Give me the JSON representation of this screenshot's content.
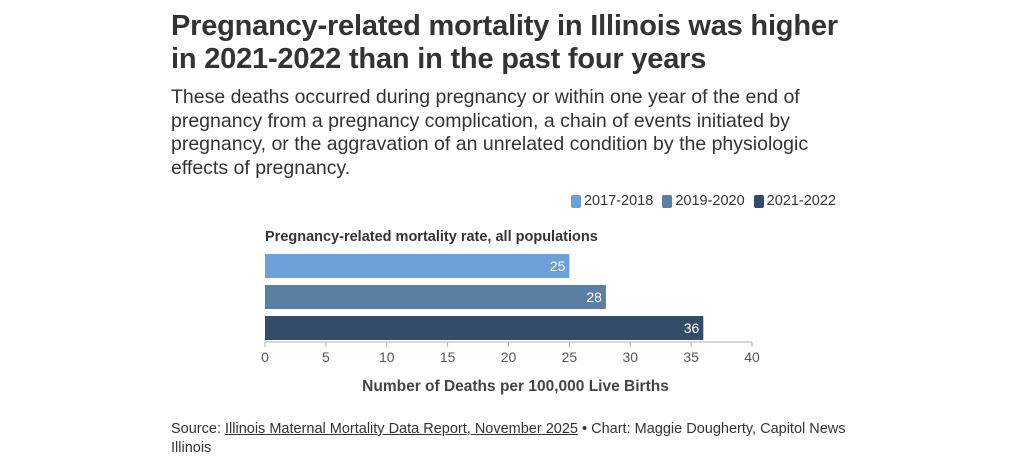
{
  "title": "Pregnancy-related mortality in Illinois was higher in 2021-2022 than in the past four years",
  "subtitle": "These deaths occurred during pregnancy or within one year of the end of pregnancy from a pregnancy complication, a chain of events initiated by pregnancy, or the aggravation of an unrelated condition by the physiologic effects of pregnancy.",
  "legend": [
    {
      "label": "2017-2018",
      "color": "#6d9fd9"
    },
    {
      "label": "2019-2020",
      "color": "#5b7fa3"
    },
    {
      "label": "2021-2022",
      "color": "#344c6a"
    }
  ],
  "footer": {
    "source_prefix": "Source: ",
    "source_link": "Illinois Maternal Mortality Data Report, November 2025",
    "credit": " • Chart: Maggie Dougherty, Capitol News Illinois"
  },
  "chart_data": {
    "type": "bar",
    "orientation": "horizontal",
    "group_label": "Pregnancy-related mortality rate, all populations",
    "series": [
      {
        "name": "2017-2018",
        "values": [
          25
        ],
        "color": "#6d9fd9"
      },
      {
        "name": "2019-2020",
        "values": [
          28
        ],
        "color": "#5b7fa3"
      },
      {
        "name": "2021-2022",
        "values": [
          36
        ],
        "color": "#344c6a"
      }
    ],
    "xlabel": "Number of Deaths per 100,000 Live Births",
    "xlim": [
      0,
      40
    ],
    "xticks": [
      "0",
      "5",
      "10",
      "15",
      "20",
      "25",
      "30",
      "35",
      "40"
    ],
    "legend_position": "top-right",
    "grid": false
  }
}
